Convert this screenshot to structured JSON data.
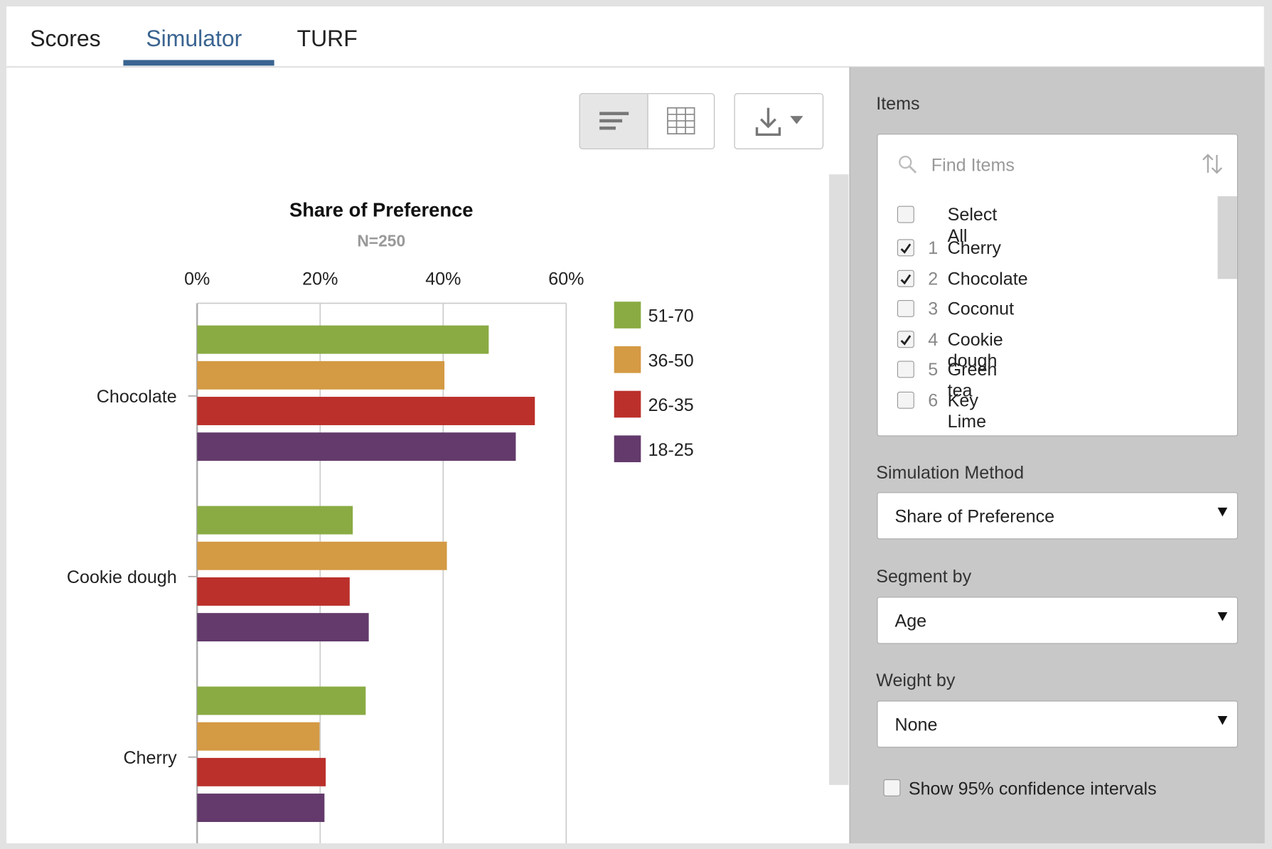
{
  "tabs": [
    "Scores",
    "Simulator",
    "TURF"
  ],
  "chart_data": {
    "type": "bar",
    "orientation": "horizontal",
    "title": "Share of Preference",
    "subtitle": "N=250",
    "categories": [
      "Chocolate",
      "Cookie dough",
      "Cherry"
    ],
    "series": [
      {
        "name": "51-70",
        "color": "#8aab43",
        "values": [
          47.4,
          25.3,
          27.4
        ]
      },
      {
        "name": "36-50",
        "color": "#d49a44",
        "values": [
          40.2,
          40.6,
          19.9
        ]
      },
      {
        "name": "26-35",
        "color": "#bb302b",
        "values": [
          54.9,
          24.8,
          20.9
        ]
      },
      {
        "name": "18-25",
        "color": "#633a6b",
        "values": [
          51.8,
          27.9,
          20.7
        ]
      }
    ],
    "xlim": [
      0,
      60
    ],
    "xticks": [
      {
        "value": 0,
        "label": "0%"
      },
      {
        "value": 20,
        "label": "20%"
      },
      {
        "value": 40,
        "label": "40%"
      },
      {
        "value": 60,
        "label": "60%"
      }
    ],
    "grid": true,
    "legend": "right"
  },
  "panel": {
    "items_label": "Items",
    "search_placeholder": "Find Items",
    "select_all": "Select All",
    "items": [
      {
        "number": 1,
        "name": "Cherry",
        "checked": true
      },
      {
        "number": 2,
        "name": "Chocolate",
        "checked": true
      },
      {
        "number": 3,
        "name": "Coconut",
        "checked": false
      },
      {
        "number": 4,
        "name": "Cookie dough",
        "checked": true
      },
      {
        "number": 5,
        "name": "Green tea",
        "checked": false
      },
      {
        "number": 6,
        "name": "Key Lime",
        "checked": false
      }
    ],
    "method_label": "Simulation Method",
    "method": "Share of Preference",
    "segment_label": "Segment by",
    "segment": "Age",
    "weight_label": "Weight by",
    "weight": "None",
    "confidence_label": "Show 95% confidence intervals",
    "confidence_checked": false
  }
}
